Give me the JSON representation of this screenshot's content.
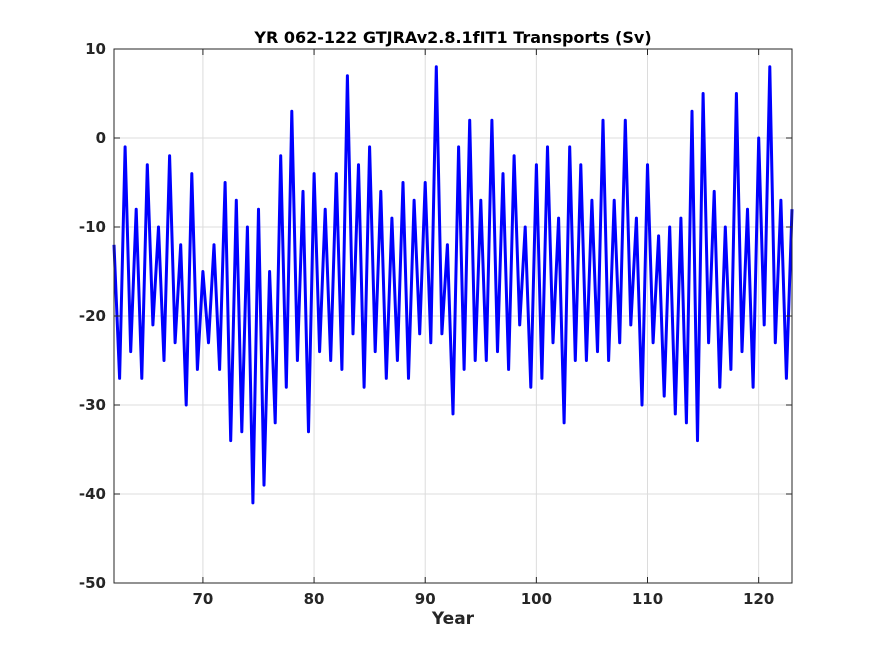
{
  "chart_data": {
    "type": "line",
    "title": "YR 062-122 GTJRAv2.8.1fIT1 Transports (Sv)",
    "xlabel": "Year",
    "ylabel": "",
    "xlim": [
      62,
      123
    ],
    "ylim": [
      -50,
      10
    ],
    "xticks": [
      70,
      80,
      90,
      100,
      110,
      120
    ],
    "yticks": [
      10,
      0,
      -10,
      -20,
      -30,
      -40,
      -50
    ],
    "grid": true,
    "line_color": "#0000ff",
    "series": [
      {
        "x": [
          62.0,
          62.5,
          63.0,
          63.5,
          64.0,
          64.5,
          65.0,
          65.5,
          66.0,
          66.5,
          67.0,
          67.5,
          68.0,
          68.5,
          69.0,
          69.5,
          70.0,
          70.5,
          71.0,
          71.5,
          72.0,
          72.5,
          73.0,
          73.5,
          74.0,
          74.5,
          75.0,
          75.5,
          76.0,
          76.5,
          77.0,
          77.5,
          78.0,
          78.5,
          79.0,
          79.5,
          80.0,
          80.5,
          81.0,
          81.5,
          82.0,
          82.5,
          83.0,
          83.5,
          84.0,
          84.5,
          85.0,
          85.5,
          86.0,
          86.5,
          87.0,
          87.5,
          88.0,
          88.5,
          89.0,
          89.5,
          90.0,
          90.5,
          91.0,
          91.5,
          92.0,
          92.5,
          93.0,
          93.5,
          94.0,
          94.5,
          95.0,
          95.5,
          96.0,
          96.5,
          97.0,
          97.5,
          98.0,
          98.5,
          99.0,
          99.5,
          100.0,
          100.5,
          101.0,
          101.5,
          102.0,
          102.5,
          103.0,
          103.5,
          104.0,
          104.5,
          105.0,
          105.5,
          106.0,
          106.5,
          107.0,
          107.5,
          108.0,
          108.5,
          109.0,
          109.5,
          110.0,
          110.5,
          111.0,
          111.5,
          112.0,
          112.5,
          113.0,
          113.5,
          114.0,
          114.5,
          115.0,
          115.5,
          116.0,
          116.5,
          117.0,
          117.5,
          118.0,
          118.5,
          119.0,
          119.5,
          120.0,
          120.5,
          121.0,
          121.5,
          122.0,
          122.5,
          123.0
        ],
        "values": [
          -12,
          -27,
          -1,
          -24,
          -8,
          -27,
          -3,
          -21,
          -10,
          -25,
          -2,
          -23,
          -12,
          -30,
          -4,
          -26,
          -15,
          -23,
          -12,
          -26,
          -5,
          -34,
          -7,
          -33,
          -10,
          -41,
          -8,
          -39,
          -15,
          -32,
          -2,
          -28,
          3,
          -25,
          -6,
          -33,
          -4,
          -24,
          -8,
          -25,
          -4,
          -26,
          7,
          -22,
          -3,
          -28,
          -1,
          -24,
          -6,
          -27,
          -9,
          -25,
          -5,
          -27,
          -7,
          -22,
          -5,
          -23,
          8,
          -22,
          -12,
          -31,
          -1,
          -26,
          2,
          -25,
          -7,
          -25,
          2,
          -24,
          -4,
          -26,
          -2,
          -21,
          -10,
          -28,
          -3,
          -27,
          -1,
          -23,
          -9,
          -32,
          -1,
          -25,
          -3,
          -25,
          -7,
          -24,
          2,
          -25,
          -7,
          -23,
          2,
          -21,
          -9,
          -30,
          -3,
          -23,
          -11,
          -29,
          -10,
          -31,
          -9,
          -32,
          3,
          -34,
          5,
          -23,
          -6,
          -28,
          -10,
          -26,
          5,
          -24,
          -8,
          -28,
          0,
          -21,
          8,
          -23,
          -7,
          -27,
          -8
        ]
      }
    ]
  }
}
